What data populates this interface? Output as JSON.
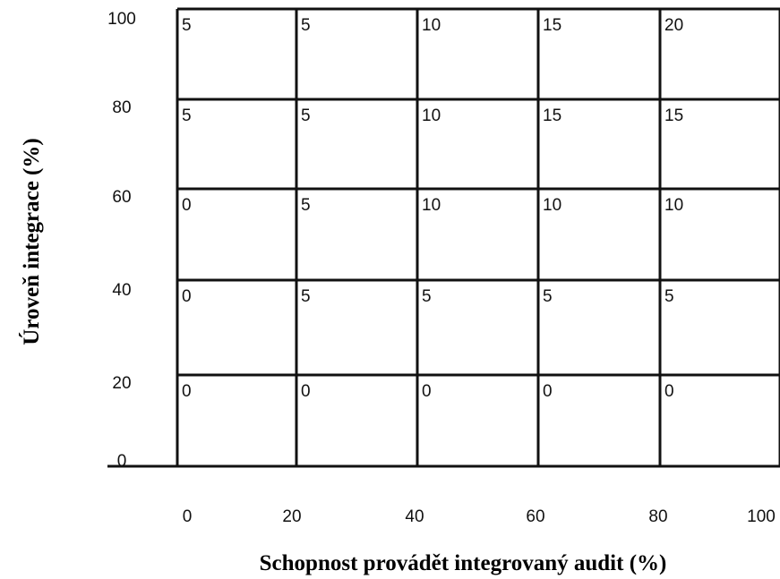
{
  "chart_data": {
    "type": "table",
    "xlabel": "Schopnost provádět integrovaný audit (%)",
    "ylabel": "Úroveň integrace (%)",
    "x_ticks": [
      "0",
      "20",
      "40",
      "60",
      "80",
      "100"
    ],
    "y_ticks": [
      "0",
      "20",
      "40",
      "60",
      "80",
      "100"
    ],
    "xlim": [
      0,
      100
    ],
    "ylim": [
      0,
      100
    ],
    "grid": true,
    "rows": [
      {
        "y_range": [
          80,
          100
        ],
        "values": [
          "5",
          "5",
          "10",
          "15",
          "20"
        ]
      },
      {
        "y_range": [
          60,
          80
        ],
        "values": [
          "5",
          "5",
          "10",
          "15",
          "15"
        ]
      },
      {
        "y_range": [
          40,
          60
        ],
        "values": [
          "0",
          "5",
          "10",
          "10",
          "10"
        ]
      },
      {
        "y_range": [
          20,
          40
        ],
        "values": [
          "0",
          "5",
          "5",
          "5",
          "5"
        ]
      },
      {
        "y_range": [
          0,
          20
        ],
        "values": [
          "0",
          "0",
          "0",
          "0",
          "0"
        ]
      }
    ]
  }
}
